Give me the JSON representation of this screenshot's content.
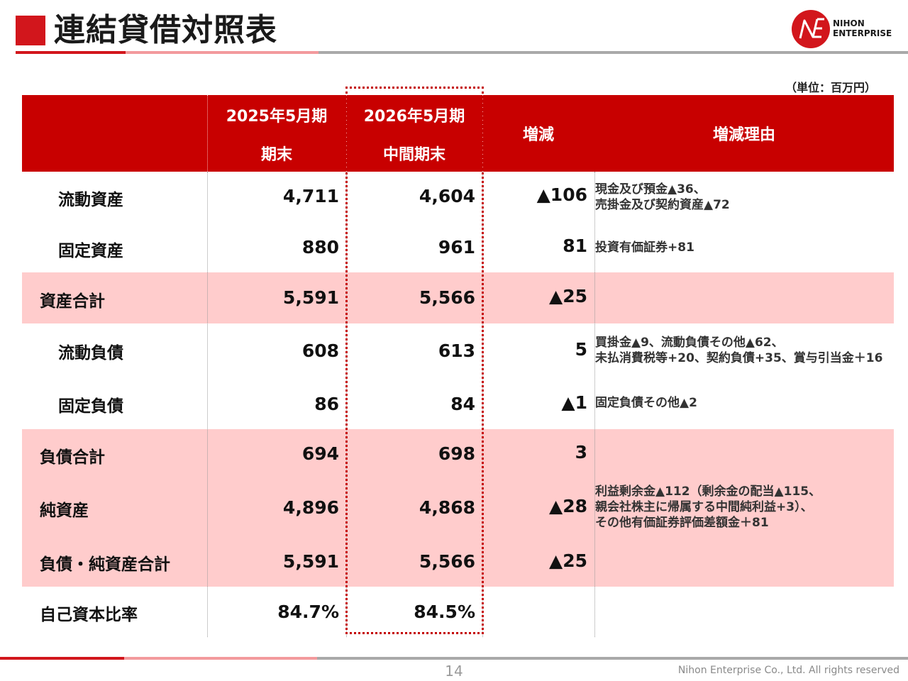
{
  "title": "連結貸借対照表",
  "logo": {
    "line1": "NIHON",
    "line2": "ENTERPRISE"
  },
  "unit": "（単位：百万円）",
  "headers": {
    "col1_line1": "2025年5月期",
    "col1_line2": "期末",
    "col2_line1": "2026年5月期",
    "col2_line2": "中間期末",
    "col3": "増減",
    "col4": "増減理由"
  },
  "rows": [
    {
      "label": "流動資産",
      "prev": "4,711",
      "curr": "4,604",
      "change": "▲106",
      "reason": [
        "現金及び預金▲36、",
        "売掛金及び契約資産▲72"
      ]
    },
    {
      "label": "固定資産",
      "prev": "880",
      "curr": "961",
      "change": "81",
      "reason": [
        "投資有価証券+81"
      ]
    },
    {
      "label": "資産合計",
      "prev": "5,591",
      "curr": "5,566",
      "change": "▲25",
      "reason": []
    },
    {
      "label": "流動負債",
      "prev": "608",
      "curr": "613",
      "change": "5",
      "reason": [
        "買掛金▲9、流動負債その他▲62、",
        "未払消費税等+20、契約負債+35、賞与引当金＋16"
      ]
    },
    {
      "label": "固定負債",
      "prev": "86",
      "curr": "84",
      "change": "▲1",
      "reason": [
        "固定負債その他▲2"
      ]
    },
    {
      "label": "負債合計",
      "prev": "694",
      "curr": "698",
      "change": "3",
      "reason": []
    },
    {
      "label": "純資産",
      "prev": "4,896",
      "curr": "4,868",
      "change": "▲28",
      "reason": [
        "利益剰余金▲112（剰余金の配当▲115、",
        "親会社株主に帰属する中間純利益+3）、",
        "その他有価証券評価差額金＋81"
      ]
    },
    {
      "label": "負債・純資産合計",
      "prev": "5,591",
      "curr": "5,566",
      "change": "▲25",
      "reason": []
    },
    {
      "label": "自己資本比率",
      "prev": "84.7%",
      "curr": "84.5%",
      "change": "",
      "reason": []
    }
  ],
  "footer": {
    "page": "14",
    "copyright": "Nihon Enterprise Co., Ltd. All rights reserved"
  },
  "colors": {
    "accent": "#d2161c",
    "header_bg": "#c80000",
    "band": "#ffcccc"
  }
}
